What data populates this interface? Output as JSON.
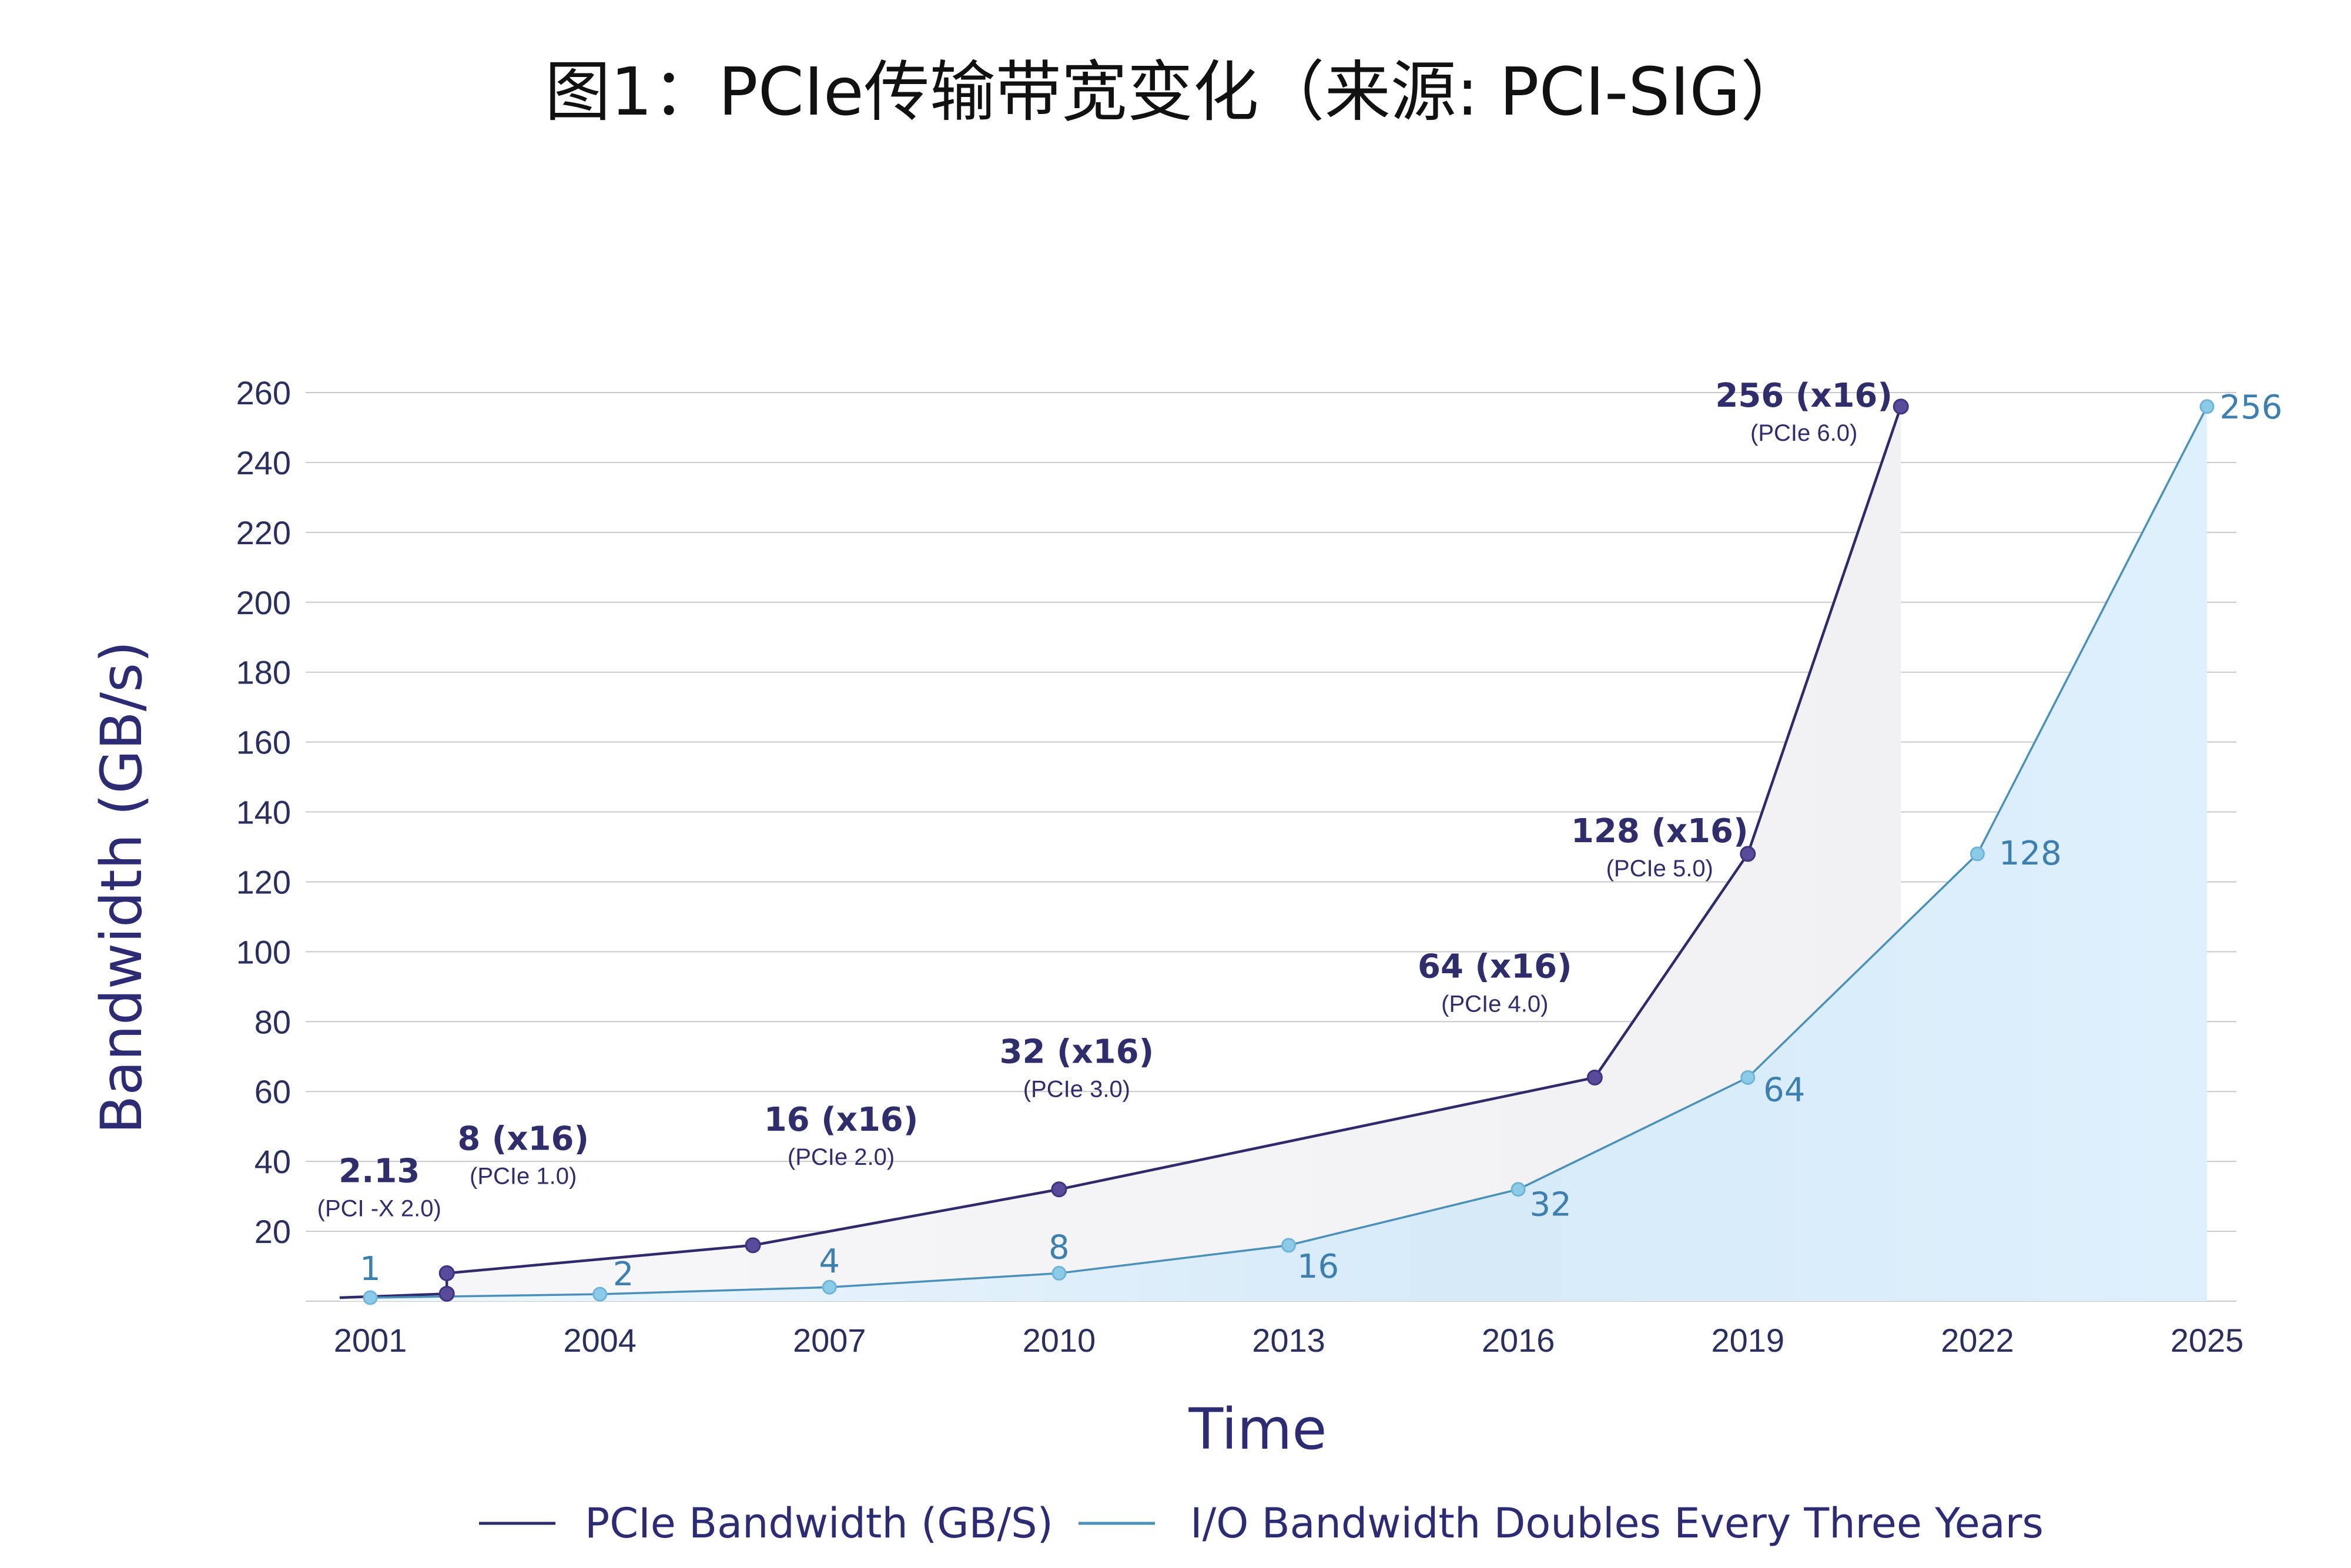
{
  "chart_data": {
    "type": "line",
    "title": "图1：PCIe传输带宽变化（来源: PCI-SIG）",
    "xlabel": "Time",
    "ylabel": "Bandwidth (GB/s)",
    "xlim": [
      2000.6,
      2025
    ],
    "ylim": [
      0,
      260
    ],
    "x_ticks": [
      2001,
      2004,
      2007,
      2010,
      2013,
      2016,
      2019,
      2022,
      2025
    ],
    "y_ticks": [
      20,
      40,
      60,
      80,
      100,
      120,
      140,
      160,
      180,
      200,
      220,
      240,
      260
    ],
    "grid": true,
    "legend_position": "bottom",
    "colors": {
      "pcie": "#2f2a6b",
      "io": "#4a90b8",
      "io_marker": "#8ccbe8",
      "pcie_marker": "#5a4a9a",
      "area": "#dbeefa"
    },
    "series": [
      {
        "name": "PCIe Bandwidth (GB/S)",
        "points": [
          {
            "x": 2000.6,
            "y": 1
          },
          {
            "x": 2002,
            "y": 2.13,
            "label": "2.13",
            "sublabel": "(PCI -X 2.0)"
          },
          {
            "x": 2002,
            "y": 8,
            "label": "8 (x16)",
            "sublabel": "(PCIe 1.0)"
          },
          {
            "x": 2006,
            "y": 16,
            "label": "16 (x16)",
            "sublabel": "(PCIe 2.0)"
          },
          {
            "x": 2010,
            "y": 32,
            "label": "32 (x16)",
            "sublabel": "(PCIe 3.0)"
          },
          {
            "x": 2017,
            "y": 64,
            "label": "64 (x16)",
            "sublabel": "(PCIe 4.0)"
          },
          {
            "x": 2019,
            "y": 128,
            "label": "128 (x16)",
            "sublabel": "(PCIe 5.0)"
          },
          {
            "x": 2021,
            "y": 256,
            "label": "256 (x16)",
            "sublabel": "(PCIe 6.0)"
          }
        ]
      },
      {
        "name": "I/O Bandwidth Doubles Every Three Years",
        "points": [
          {
            "x": 2001,
            "y": 1,
            "label": "1"
          },
          {
            "x": 2004,
            "y": 2,
            "label": "2"
          },
          {
            "x": 2007,
            "y": 4,
            "label": "4"
          },
          {
            "x": 2010,
            "y": 8,
            "label": "8"
          },
          {
            "x": 2013,
            "y": 16,
            "label": "16"
          },
          {
            "x": 2016,
            "y": 32,
            "label": "32"
          },
          {
            "x": 2019,
            "y": 64,
            "label": "64"
          },
          {
            "x": 2022,
            "y": 128,
            "label": "128"
          },
          {
            "x": 2025,
            "y": 256,
            "label": "256"
          }
        ]
      }
    ]
  }
}
